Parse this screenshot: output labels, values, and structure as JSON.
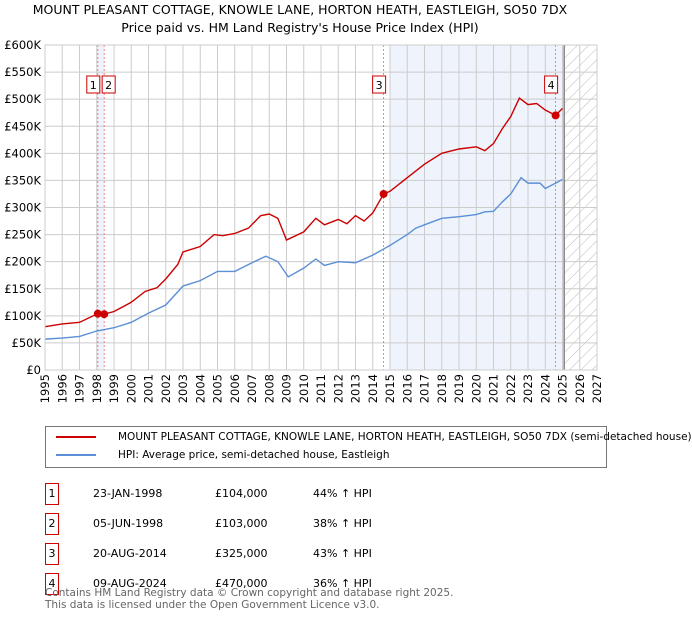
{
  "title": "MOUNT PLEASANT COTTAGE, KNOWLE LANE, HORTON HEATH, EASTLEIGH, SO50 7DX",
  "subtitle": "Price paid vs. HM Land Registry's House Price Index (HPI)",
  "chart_data": {
    "type": "line",
    "xlim": [
      1995,
      2027
    ],
    "ylim": [
      0,
      600000
    ],
    "yticks": [
      {
        "v": 0,
        "l": "£0"
      },
      {
        "v": 50000,
        "l": "£50K"
      },
      {
        "v": 100000,
        "l": "£100K"
      },
      {
        "v": 150000,
        "l": "£150K"
      },
      {
        "v": 200000,
        "l": "£200K"
      },
      {
        "v": 250000,
        "l": "£250K"
      },
      {
        "v": 300000,
        "l": "£300K"
      },
      {
        "v": 350000,
        "l": "£350K"
      },
      {
        "v": 400000,
        "l": "£400K"
      },
      {
        "v": 450000,
        "l": "£450K"
      },
      {
        "v": 500000,
        "l": "£500K"
      },
      {
        "v": 550000,
        "l": "£550K"
      },
      {
        "v": 600000,
        "l": "£600K"
      }
    ],
    "xticks": [
      "1995",
      "1996",
      "1997",
      "1998",
      "1999",
      "2000",
      "2001",
      "2002",
      "2003",
      "2004",
      "2005",
      "2006",
      "2007",
      "2008",
      "2009",
      "2010",
      "2011",
      "2012",
      "2013",
      "2014",
      "2015",
      "2016",
      "2017",
      "2018",
      "2019",
      "2020",
      "2021",
      "2022",
      "2023",
      "2024",
      "2025",
      "2026",
      "2027"
    ],
    "series": [
      {
        "name": "MOUNT PLEASANT COTTAGE, KNOWLE LANE, HORTON HEATH, EASTLEIGH, SO50 7DX (semi-detached house)",
        "color": "#cc0000",
        "x": [
          1995,
          1996,
          1997,
          1998.06,
          1998.43,
          1999,
          2000,
          2000.8,
          2001.5,
          2002,
          2002.7,
          2003,
          2004,
          2004.8,
          2005.3,
          2006,
          2006.8,
          2007.5,
          2008,
          2008.5,
          2009,
          2010,
          2010.7,
          2011.2,
          2012,
          2012.5,
          2013,
          2013.5,
          2014,
          2014.63,
          2015,
          2016,
          2017,
          2018,
          2019,
          2020,
          2020.5,
          2021,
          2021.5,
          2022,
          2022.5,
          2023,
          2023.5,
          2024,
          2024.6,
          2025
        ],
        "y": [
          80000,
          85000,
          88000,
          104000,
          103000,
          108000,
          125000,
          145000,
          152000,
          168000,
          195000,
          218000,
          228000,
          250000,
          248000,
          252000,
          262000,
          285000,
          288000,
          280000,
          240000,
          255000,
          280000,
          268000,
          278000,
          270000,
          285000,
          275000,
          290000,
          325000,
          330000,
          355000,
          380000,
          400000,
          408000,
          412000,
          405000,
          418000,
          445000,
          468000,
          502000,
          490000,
          492000,
          480000,
          470000,
          483000
        ]
      },
      {
        "name": "HPI: Average price, semi-detached house, Eastleigh",
        "color": "#5b8fd6",
        "x": [
          1995,
          1996,
          1997,
          1998,
          1999,
          2000,
          2001,
          2002,
          2003,
          2004,
          2005,
          2006,
          2007,
          2007.8,
          2008.5,
          2009.1,
          2010,
          2010.7,
          2011.2,
          2012,
          2013,
          2014,
          2015,
          2016,
          2016.5,
          2017,
          2018,
          2019,
          2020,
          2020.5,
          2021,
          2021.5,
          2022,
          2022.6,
          2023,
          2023.7,
          2024,
          2024.6,
          2025
        ],
        "y": [
          57000,
          59000,
          62000,
          72000,
          78000,
          88000,
          105000,
          120000,
          155000,
          165000,
          182000,
          182000,
          198000,
          210000,
          200000,
          172000,
          188000,
          205000,
          193000,
          200000,
          198000,
          212000,
          230000,
          250000,
          262000,
          268000,
          280000,
          283000,
          287000,
          292000,
          293000,
          310000,
          325000,
          355000,
          345000,
          345000,
          335000,
          345000,
          352000
        ]
      }
    ],
    "sales": [
      {
        "n": "1",
        "x": 1998.06,
        "date": "23-JAN-1998",
        "price": "£104,000",
        "v": 104000,
        "hpi": "44% ↑ HPI"
      },
      {
        "n": "2",
        "x": 1998.43,
        "date": "05-JUN-1998",
        "price": "£103,000",
        "v": 103000,
        "hpi": "38% ↑ HPI"
      },
      {
        "n": "3",
        "x": 2014.63,
        "date": "20-AUG-2014",
        "price": "£325,000",
        "v": 325000,
        "hpi": "43% ↑ HPI"
      },
      {
        "n": "4",
        "x": 2024.6,
        "date": "09-AUG-2024",
        "price": "£470,000",
        "v": 470000,
        "hpi": "36% ↑ HPI"
      }
    ],
    "shaded": [
      [
        1998.06,
        1998.43
      ],
      [
        2015,
        2025.1
      ]
    ],
    "forecast_from": 2025.1
  },
  "legend": {
    "red": "MOUNT PLEASANT COTTAGE, KNOWLE LANE, HORTON HEATH, EASTLEIGH, SO50 7DX (semi-detached house)",
    "blue": "HPI: Average price, semi-detached house, Eastleigh"
  },
  "footer": {
    "line1": "Contains HM Land Registry data © Crown copyright and database right 2025.",
    "line2": "This data is licensed under the Open Government Licence v3.0."
  }
}
